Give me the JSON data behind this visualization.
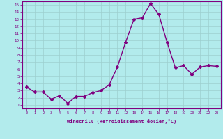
{
  "x": [
    0,
    1,
    2,
    3,
    4,
    5,
    6,
    7,
    8,
    9,
    10,
    11,
    12,
    13,
    14,
    15,
    16,
    17,
    18,
    19,
    20,
    21,
    22,
    23
  ],
  "y": [
    3.5,
    2.8,
    2.8,
    1.8,
    2.3,
    1.2,
    2.2,
    2.2,
    2.7,
    3.0,
    3.8,
    6.3,
    9.8,
    13.0,
    13.2,
    15.2,
    13.7,
    9.8,
    6.2,
    6.5,
    5.3,
    6.3,
    6.5,
    6.4
  ],
  "line_color": "#800080",
  "marker": "D",
  "marker_size": 2,
  "bg_color": "#b2ebec",
  "grid_color": "#9dcfcf",
  "xlabel": "Windchill (Refroidissement éolien,°C)",
  "xlabel_color": "#800080",
  "ylabel_ticks": [
    1,
    2,
    3,
    4,
    5,
    6,
    7,
    8,
    9,
    10,
    11,
    12,
    13,
    14,
    15
  ],
  "xtick_labels": [
    "0",
    "1",
    "2",
    "3",
    "4",
    "5",
    "6",
    "7",
    "8",
    "9",
    "10",
    "11",
    "12",
    "13",
    "14",
    "15",
    "16",
    "17",
    "18",
    "19",
    "20",
    "21",
    "22",
    "23"
  ],
  "ylim": [
    0.5,
    15.5
  ],
  "xlim": [
    -0.5,
    23.5
  ],
  "tick_color": "#800080",
  "axis_color": "#800080",
  "linewidth": 1.0
}
